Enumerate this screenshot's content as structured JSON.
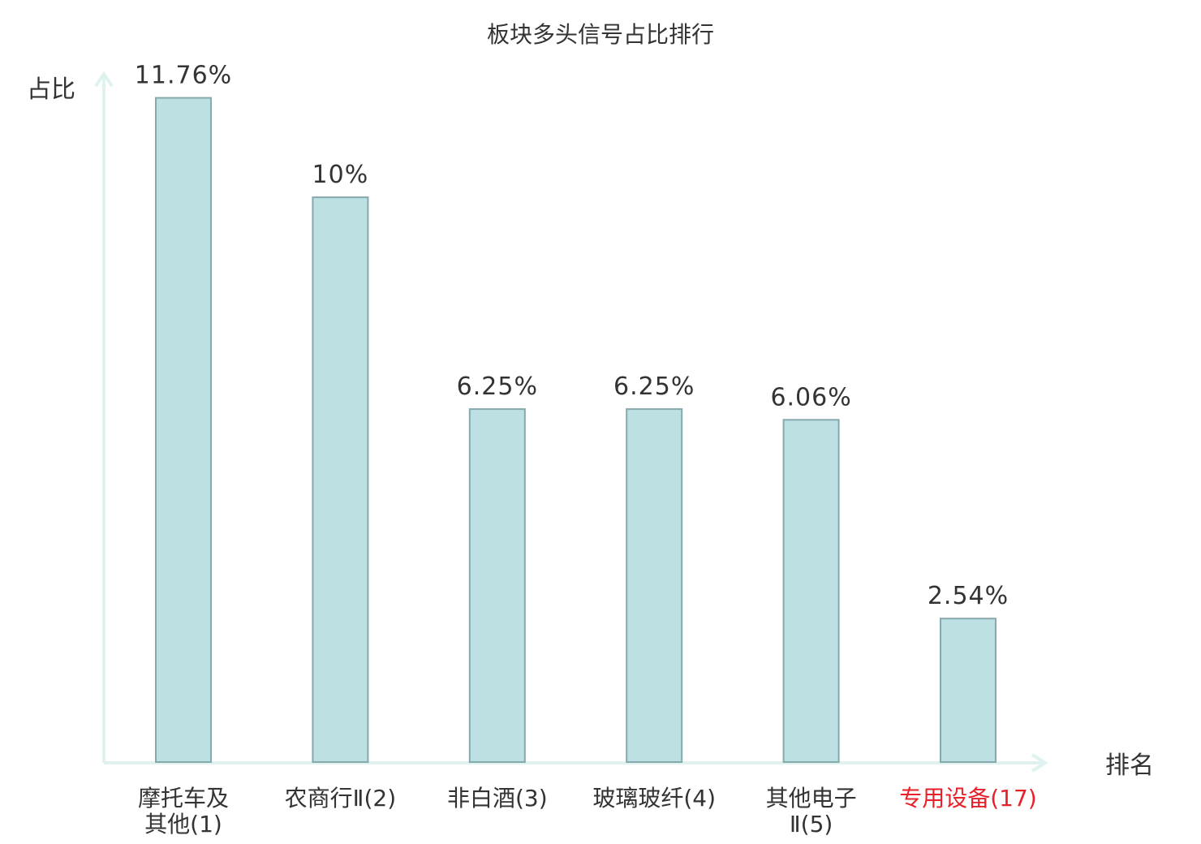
{
  "chart_data": {
    "type": "bar",
    "title": "板块多头信号占比排行",
    "ylabel": "占比",
    "xlabel": "排名",
    "ylim": [
      0,
      12.2
    ],
    "grid": false,
    "legend": "none",
    "categories": [
      [
        "摩托车及",
        "其他(1)"
      ],
      [
        "农商行Ⅱ(2)"
      ],
      [
        "非白酒(3)"
      ],
      [
        "玻璃玻纤(4)"
      ],
      [
        "其他电子",
        "Ⅱ(5)"
      ],
      [
        "专用设备(17)"
      ]
    ],
    "values": [
      11.76,
      10,
      6.25,
      6.25,
      6.06,
      2.54
    ],
    "value_labels": [
      "11.76%",
      "10%",
      "6.25%",
      "6.25%",
      "6.06%",
      "2.54%"
    ],
    "highlight_index": 5
  },
  "colors": {
    "bar_fill": "#bde0e3",
    "bar_stroke": "#86a9ad",
    "axis": "#dff2ef",
    "text": "#333333",
    "highlight_text": "#e8202a"
  }
}
